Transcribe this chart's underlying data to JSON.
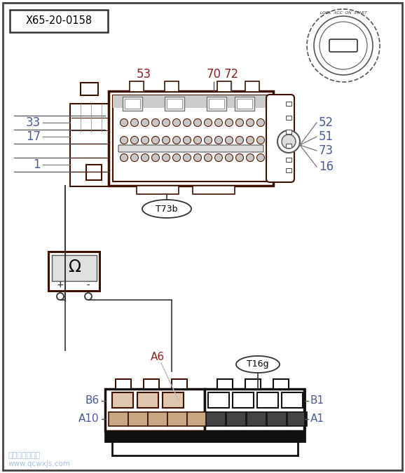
{
  "bg_color": "#ffffff",
  "outer_border_color": "#333333",
  "dark_brown": "#3d1000",
  "blue_label": "#4a5a9a",
  "red_label": "#8B2020",
  "title": "X65-20-0158",
  "watermark_line1": "汽车维修技术网",
  "watermark_line2": "www.qcwxjs.com",
  "pin_labels_left": [
    "33",
    "17",
    "1"
  ],
  "pin_labels_right": [
    "52",
    "51",
    "73",
    "16"
  ],
  "pin_labels_top": [
    "53",
    "70",
    "72"
  ],
  "connector2_labels_left": [
    "B6",
    "A10"
  ],
  "connector2_labels_right": [
    "B1",
    "A1"
  ],
  "connector2_label_top": "A6",
  "T73b_label": "T73b",
  "T16g_label": "T16g"
}
